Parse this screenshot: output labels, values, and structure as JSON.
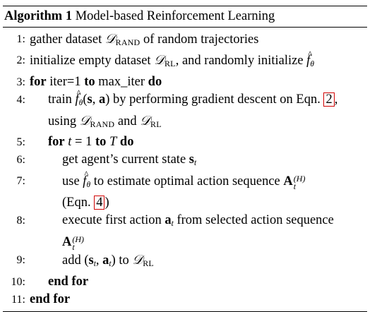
{
  "algorithm": {
    "label": "Algorithm 1",
    "title": "Model-based Reinforcement Learning",
    "lines": [
      {
        "num": "1",
        "text": "gather dataset 𝒟RAND of random trajectories"
      },
      {
        "num": "2",
        "text": "initialize empty dataset 𝒟RL, and randomly initialize f̂θ"
      },
      {
        "num": "3",
        "text": "for iter=1 to max_iter do"
      },
      {
        "num": "4",
        "text": "train f̂θ(s, a) by performing gradient descent on Eqn. 2,"
      },
      {
        "num": "",
        "text": "using 𝒟RAND and 𝒟RL"
      },
      {
        "num": "5",
        "text": "for t = 1 to T do"
      },
      {
        "num": "6",
        "text": "get agent’s current state st"
      },
      {
        "num": "7",
        "text": "use f̂θ to estimate optimal action sequence At(H)"
      },
      {
        "num": "",
        "text": "(Eqn. 4)"
      },
      {
        "num": "8",
        "text": "execute first action at from selected action sequence"
      },
      {
        "num": "",
        "text": "At(H)"
      },
      {
        "num": "9",
        "text": "add (st, at) to 𝒟RL"
      },
      {
        "num": "10",
        "text": "end for"
      },
      {
        "num": "11",
        "text": "end for"
      }
    ],
    "tokens": {
      "gather": "gather dataset",
      "random_traj": "of random trajectories",
      "init_empty": "initialize empty dataset",
      "rand_init": ", and randomly initialize",
      "for": "for",
      "iter_eq": "iter=1",
      "to": "to",
      "max_iter": "max_iter",
      "do": "do",
      "train": "train",
      "by_perf": "by performing gradient descent on Eqn.",
      "eqn_2": "2",
      "comma": ",",
      "using": "using",
      "and": "and",
      "t_eq": "t",
      "eq_1": "= 1",
      "T": "T",
      "get_state": "get agent’s current state",
      "use": "use",
      "to_estimate": "to estimate optimal action sequence",
      "eqn_open": "(Eqn.",
      "eqn_4": "4",
      "paren_close": ")",
      "execute": "execute first action",
      "from_sel": "from selected action sequence",
      "add": "add",
      "add_to": "to",
      "end_for": "end for",
      "D": "𝒟",
      "RAND": "RAND",
      "RL": "RL",
      "f": "f",
      "theta": "θ",
      "s": "s",
      "a": "a",
      "t": "t",
      "A": "A",
      "H": "(H)"
    }
  }
}
